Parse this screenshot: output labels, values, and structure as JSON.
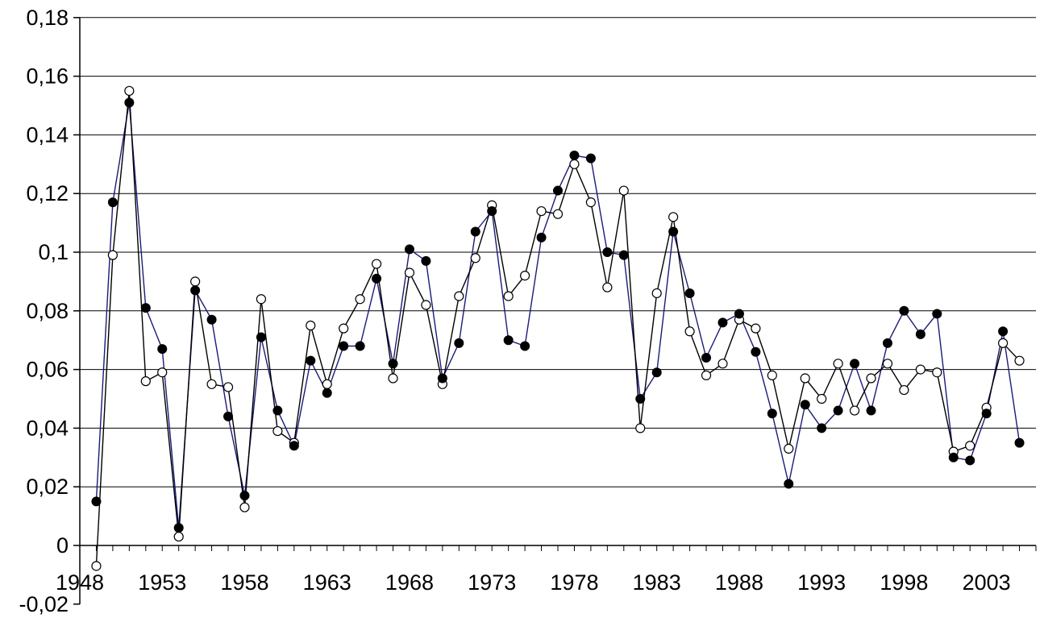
{
  "colors": {
    "background": "#ffffff",
    "gridline": "#000000",
    "axis": "#000000",
    "series_a_line": "#1a1a7a",
    "series_a_marker": "#000000",
    "series_b_line": "#000000",
    "series_b_marker_fill": "#ffffff"
  },
  "chart_data": {
    "type": "line",
    "title": "",
    "xlabel": "",
    "ylabel": "",
    "ylim": [
      -0.02,
      0.18
    ],
    "xlim": [
      1948,
      2006
    ],
    "grid": "horizontal",
    "legend": "none",
    "y_ticks": [
      "-0,02",
      "0",
      "0,02",
      "0,04",
      "0,06",
      "0,08",
      "0,1",
      "0,12",
      "0,14",
      "0,16",
      "0,18"
    ],
    "x_ticks": [
      "1948",
      "1953",
      "1958",
      "1963",
      "1968",
      "1973",
      "1978",
      "1983",
      "1988",
      "1993",
      "1998",
      "2003"
    ],
    "x": [
      1949,
      1950,
      1951,
      1952,
      1953,
      1954,
      1955,
      1956,
      1957,
      1958,
      1959,
      1960,
      1961,
      1962,
      1963,
      1964,
      1965,
      1966,
      1967,
      1968,
      1969,
      1970,
      1971,
      1972,
      1973,
      1974,
      1975,
      1976,
      1977,
      1978,
      1979,
      1980,
      1981,
      1982,
      1983,
      1984,
      1985,
      1986,
      1987,
      1988,
      1989,
      1990,
      1991,
      1992,
      1993,
      1994,
      1995,
      1996,
      1997,
      1998,
      1999,
      2000,
      2001,
      2002,
      2003,
      2004,
      2005
    ],
    "series": [
      {
        "marker": "filled-circle",
        "values": [
          0.015,
          0.117,
          0.151,
          0.081,
          0.067,
          0.006,
          0.087,
          0.077,
          0.044,
          0.017,
          0.071,
          0.046,
          0.034,
          0.063,
          0.052,
          0.068,
          0.068,
          0.091,
          0.062,
          0.101,
          0.097,
          0.057,
          0.069,
          0.107,
          0.114,
          0.07,
          0.068,
          0.105,
          0.121,
          0.133,
          0.132,
          0.1,
          0.099,
          0.05,
          0.059,
          0.107,
          0.086,
          0.064,
          0.076,
          0.079,
          0.066,
          0.045,
          0.021,
          0.048,
          0.04,
          0.046,
          0.062,
          0.046,
          0.069,
          0.08,
          0.072,
          0.079,
          0.03,
          0.029,
          0.045,
          0.073,
          0.035
        ]
      },
      {
        "marker": "open-circle",
        "values": [
          -0.007,
          0.099,
          0.155,
          0.056,
          0.059,
          0.003,
          0.09,
          0.055,
          0.054,
          0.013,
          0.084,
          0.039,
          0.035,
          0.075,
          0.055,
          0.074,
          0.084,
          0.096,
          0.057,
          0.093,
          0.082,
          0.055,
          0.085,
          0.098,
          0.116,
          0.085,
          0.092,
          0.114,
          0.113,
          0.13,
          0.117,
          0.088,
          0.121,
          0.04,
          0.086,
          0.112,
          0.073,
          0.058,
          0.062,
          0.077,
          0.074,
          0.058,
          0.033,
          0.057,
          0.05,
          0.062,
          0.046,
          0.057,
          0.062,
          0.053,
          0.06,
          0.059,
          0.032,
          0.034,
          0.047,
          0.069,
          0.063
        ]
      }
    ]
  }
}
